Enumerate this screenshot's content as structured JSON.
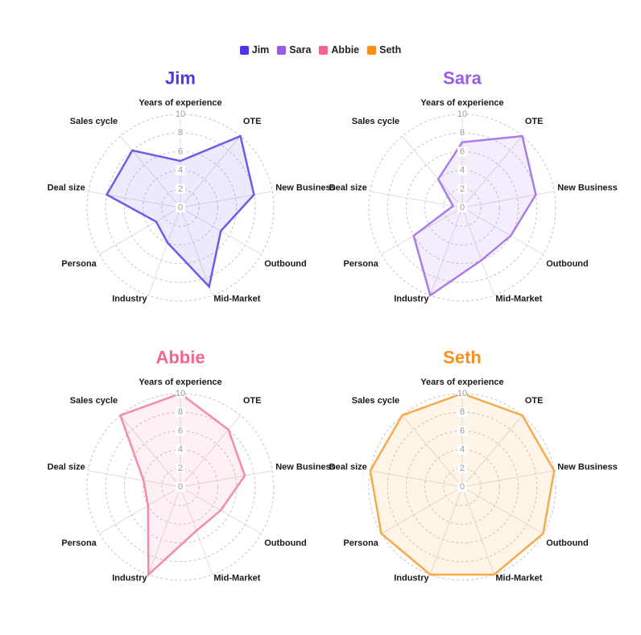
{
  "legend": [
    {
      "name": "Jim",
      "color": "#4f35e4"
    },
    {
      "name": "Sara",
      "color": "#9c5be6"
    },
    {
      "name": "Abbie",
      "color": "#f4648c"
    },
    {
      "name": "Seth",
      "color": "#f7911c"
    }
  ],
  "chart_data": [
    {
      "type": "radar",
      "title": "Jim",
      "color": "#4f35e4",
      "stroke": "#6c5ce7",
      "fill": "rgba(108,92,231,0.13)",
      "axes": [
        "Years of experience",
        "OTE",
        "New Business",
        "Outbound",
        "Mid-Market",
        "Industry",
        "Persona",
        "Deal size",
        "Sales cycle"
      ],
      "ticks": [
        "0",
        "2",
        "4",
        "6",
        "8",
        "10"
      ],
      "rlim": [
        0,
        10
      ],
      "grid": true,
      "values": [
        5,
        10,
        8,
        5,
        9,
        4,
        3,
        8,
        8
      ]
    },
    {
      "type": "radar",
      "title": "Sara",
      "color": "#9c5be6",
      "stroke": "#ab7ce8",
      "fill": "rgba(171,124,232,0.13)",
      "axes": [
        "Years of experience",
        "OTE",
        "New Business",
        "Outbound",
        "Mid-Market",
        "Industry",
        "Persona",
        "Deal size",
        "Sales cycle"
      ],
      "ticks": [
        "0",
        "2",
        "4",
        "6",
        "8",
        "10"
      ],
      "rlim": [
        0,
        10
      ],
      "grid": true,
      "values": [
        7,
        10,
        8,
        6,
        6,
        10,
        6,
        1,
        4
      ]
    },
    {
      "type": "radar",
      "title": "Abbie",
      "color": "#f4648c",
      "stroke": "#f58ba6",
      "fill": "rgba(245,139,166,0.13)",
      "axes": [
        "Years of experience",
        "OTE",
        "New Business",
        "Outbound",
        "Mid-Market",
        "Industry",
        "Persona",
        "Deal size",
        "Sales cycle"
      ],
      "ticks": [
        "0",
        "2",
        "4",
        "6",
        "8",
        "10"
      ],
      "rlim": [
        0,
        10
      ],
      "grid": true,
      "values": [
        10,
        8,
        7,
        5,
        5,
        10,
        4,
        4,
        10
      ]
    },
    {
      "type": "radar",
      "title": "Seth",
      "color": "#f7911c",
      "stroke": "#f7aa4a",
      "fill": "rgba(247,170,74,0.13)",
      "axes": [
        "Years of experience",
        "OTE",
        "New Business",
        "Outbound",
        "Mid-Market",
        "Industry",
        "Persona",
        "Deal size",
        "Sales cycle"
      ],
      "ticks": [
        "0",
        "2",
        "4",
        "6",
        "8",
        "10"
      ],
      "rlim": [
        0,
        10
      ],
      "grid": true,
      "values": [
        10,
        10,
        10,
        10,
        10,
        10,
        10,
        10,
        10
      ]
    }
  ]
}
